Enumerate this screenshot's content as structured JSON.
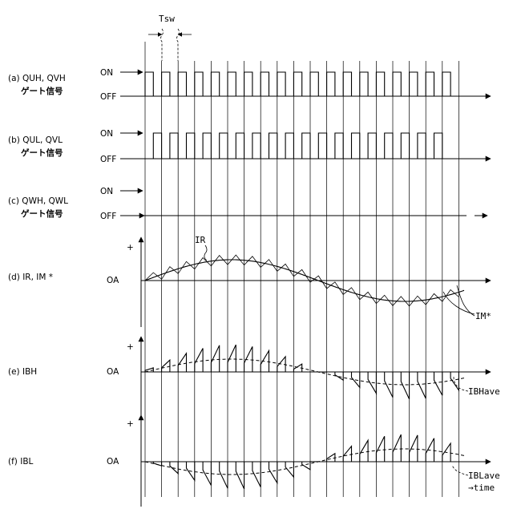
{
  "title": "",
  "tsw_label": "Tsw",
  "panels": {
    "a": {
      "label_line1": "(a) QUH, QVH",
      "label_line2": "ゲート信号",
      "on": "ON",
      "off": "OFF"
    },
    "b": {
      "label_line1": "(b) QUL, QVL",
      "label_line2": "ゲート信号",
      "on": "ON",
      "off": "OFF"
    },
    "c": {
      "label_line1": "(c) QWH, QWL",
      "label_line2": "ゲート信号",
      "on": "ON",
      "off": "OFF"
    },
    "d": {
      "label": "(d) IR, IM *",
      "zero": "OA",
      "plus": "+",
      "curve_label_ir": "IR",
      "curve_label_im": "IM*"
    },
    "e": {
      "label": "(e) IBH",
      "zero": "OA",
      "plus": "+",
      "avg_label": "IBHave"
    },
    "f": {
      "label": "(f) IBL",
      "zero": "OA",
      "plus": "+",
      "avg_label": "IBLave",
      "time_label": "→time"
    }
  },
  "switching": {
    "periods": 19,
    "duty_high_side": 0.5
  }
}
